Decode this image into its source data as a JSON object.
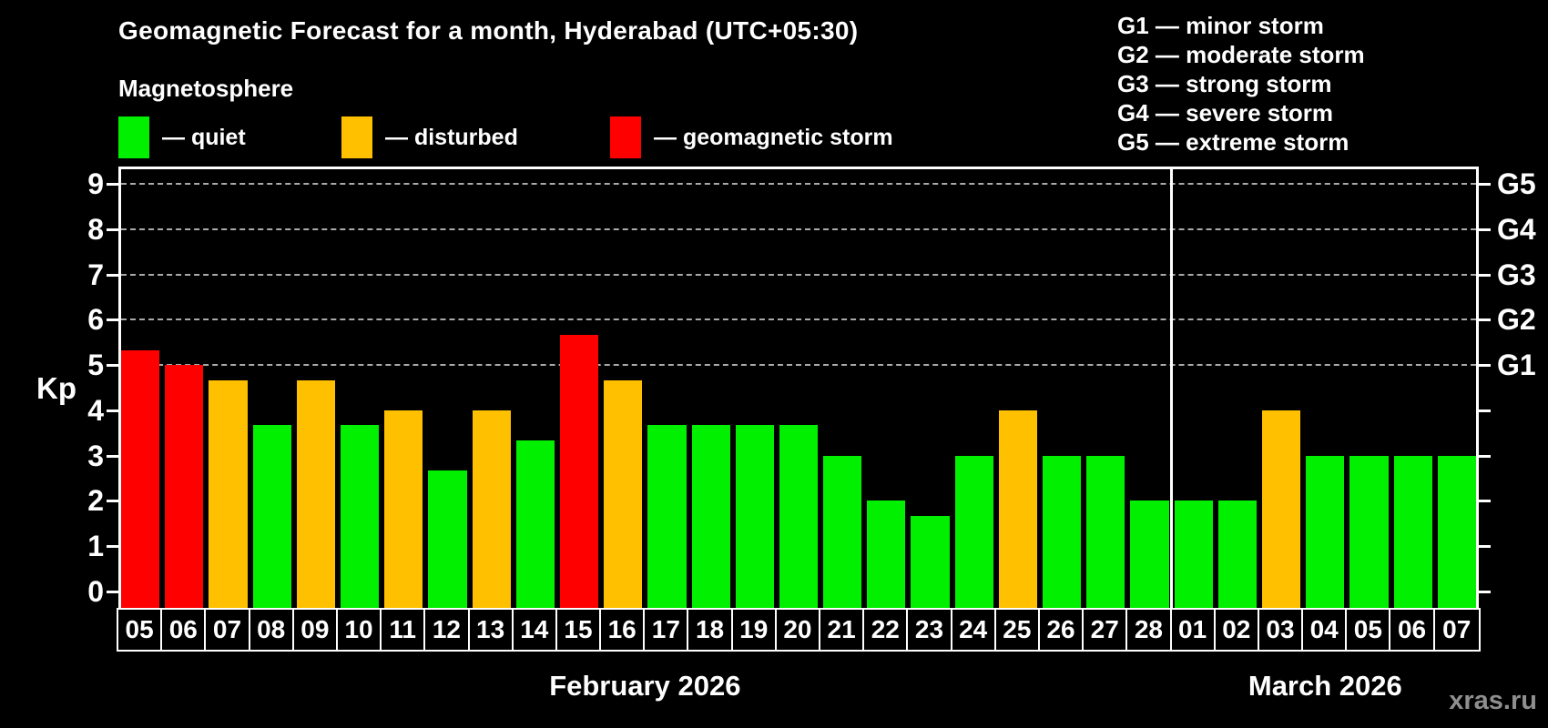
{
  "watermark": "xras.ru",
  "legend": {
    "items": [
      {
        "status": "quiet",
        "label": "— quiet",
        "color": "#00f000"
      },
      {
        "status": "disturbed",
        "label": "— disturbed",
        "color": "#ffc000"
      },
      {
        "status": "storm",
        "label": "— geomagnetic storm",
        "color": "#ff0000"
      }
    ]
  },
  "g_legend": [
    "G1 — minor storm",
    "G2 — moderate storm",
    "G3 — strong storm",
    "G4 — severe storm",
    "G5 — extreme storm"
  ],
  "chart_data": {
    "type": "bar",
    "title": "Geomagnetic Forecast for a month, Hyderabad (UTC+05:30)",
    "subtitle": "Magnetosphere",
    "ylabel": "Kp",
    "ylim": [
      0,
      9
    ],
    "yticks": [
      0,
      1,
      2,
      3,
      4,
      5,
      6,
      7,
      8,
      9
    ],
    "grid_kp": [
      5,
      6,
      7,
      8,
      9
    ],
    "right_labels": [
      {
        "kp": 5,
        "label": "G1"
      },
      {
        "kp": 6,
        "label": "G2"
      },
      {
        "kp": 7,
        "label": "G3"
      },
      {
        "kp": 8,
        "label": "G4"
      },
      {
        "kp": 9,
        "label": "G5"
      }
    ],
    "legend_position": "top",
    "grid": "dashed horizontal at Kp 5-9",
    "status_colors": {
      "quiet": "#00f000",
      "disturbed": "#ffc000",
      "storm": "#ff0000"
    },
    "months": [
      {
        "label": "February 2026",
        "bars": [
          {
            "day": "05",
            "kp": 5.33,
            "status": "storm"
          },
          {
            "day": "06",
            "kp": 5.0,
            "status": "storm"
          },
          {
            "day": "07",
            "kp": 4.67,
            "status": "disturbed"
          },
          {
            "day": "08",
            "kp": 3.67,
            "status": "quiet"
          },
          {
            "day": "09",
            "kp": 4.67,
            "status": "disturbed"
          },
          {
            "day": "10",
            "kp": 3.67,
            "status": "quiet"
          },
          {
            "day": "11",
            "kp": 4.0,
            "status": "disturbed"
          },
          {
            "day": "12",
            "kp": 2.67,
            "status": "quiet"
          },
          {
            "day": "13",
            "kp": 4.0,
            "status": "disturbed"
          },
          {
            "day": "14",
            "kp": 3.33,
            "status": "quiet"
          },
          {
            "day": "15",
            "kp": 5.67,
            "status": "storm"
          },
          {
            "day": "16",
            "kp": 4.67,
            "status": "disturbed"
          },
          {
            "day": "17",
            "kp": 3.67,
            "status": "quiet"
          },
          {
            "day": "18",
            "kp": 3.67,
            "status": "quiet"
          },
          {
            "day": "19",
            "kp": 3.67,
            "status": "quiet"
          },
          {
            "day": "20",
            "kp": 3.67,
            "status": "quiet"
          },
          {
            "day": "21",
            "kp": 3.0,
            "status": "quiet"
          },
          {
            "day": "22",
            "kp": 2.0,
            "status": "quiet"
          },
          {
            "day": "23",
            "kp": 1.67,
            "status": "quiet"
          },
          {
            "day": "24",
            "kp": 3.0,
            "status": "quiet"
          },
          {
            "day": "25",
            "kp": 4.0,
            "status": "disturbed"
          },
          {
            "day": "26",
            "kp": 3.0,
            "status": "quiet"
          },
          {
            "day": "27",
            "kp": 3.0,
            "status": "quiet"
          },
          {
            "day": "28",
            "kp": 2.0,
            "status": "quiet"
          }
        ]
      },
      {
        "label": "March 2026",
        "bars": [
          {
            "day": "01",
            "kp": 2.0,
            "status": "quiet"
          },
          {
            "day": "02",
            "kp": 2.0,
            "status": "quiet"
          },
          {
            "day": "03",
            "kp": 4.0,
            "status": "disturbed"
          },
          {
            "day": "04",
            "kp": 3.0,
            "status": "quiet"
          },
          {
            "day": "05",
            "kp": 3.0,
            "status": "quiet"
          },
          {
            "day": "06",
            "kp": 3.0,
            "status": "quiet"
          },
          {
            "day": "07",
            "kp": 3.0,
            "status": "quiet"
          }
        ]
      }
    ]
  }
}
